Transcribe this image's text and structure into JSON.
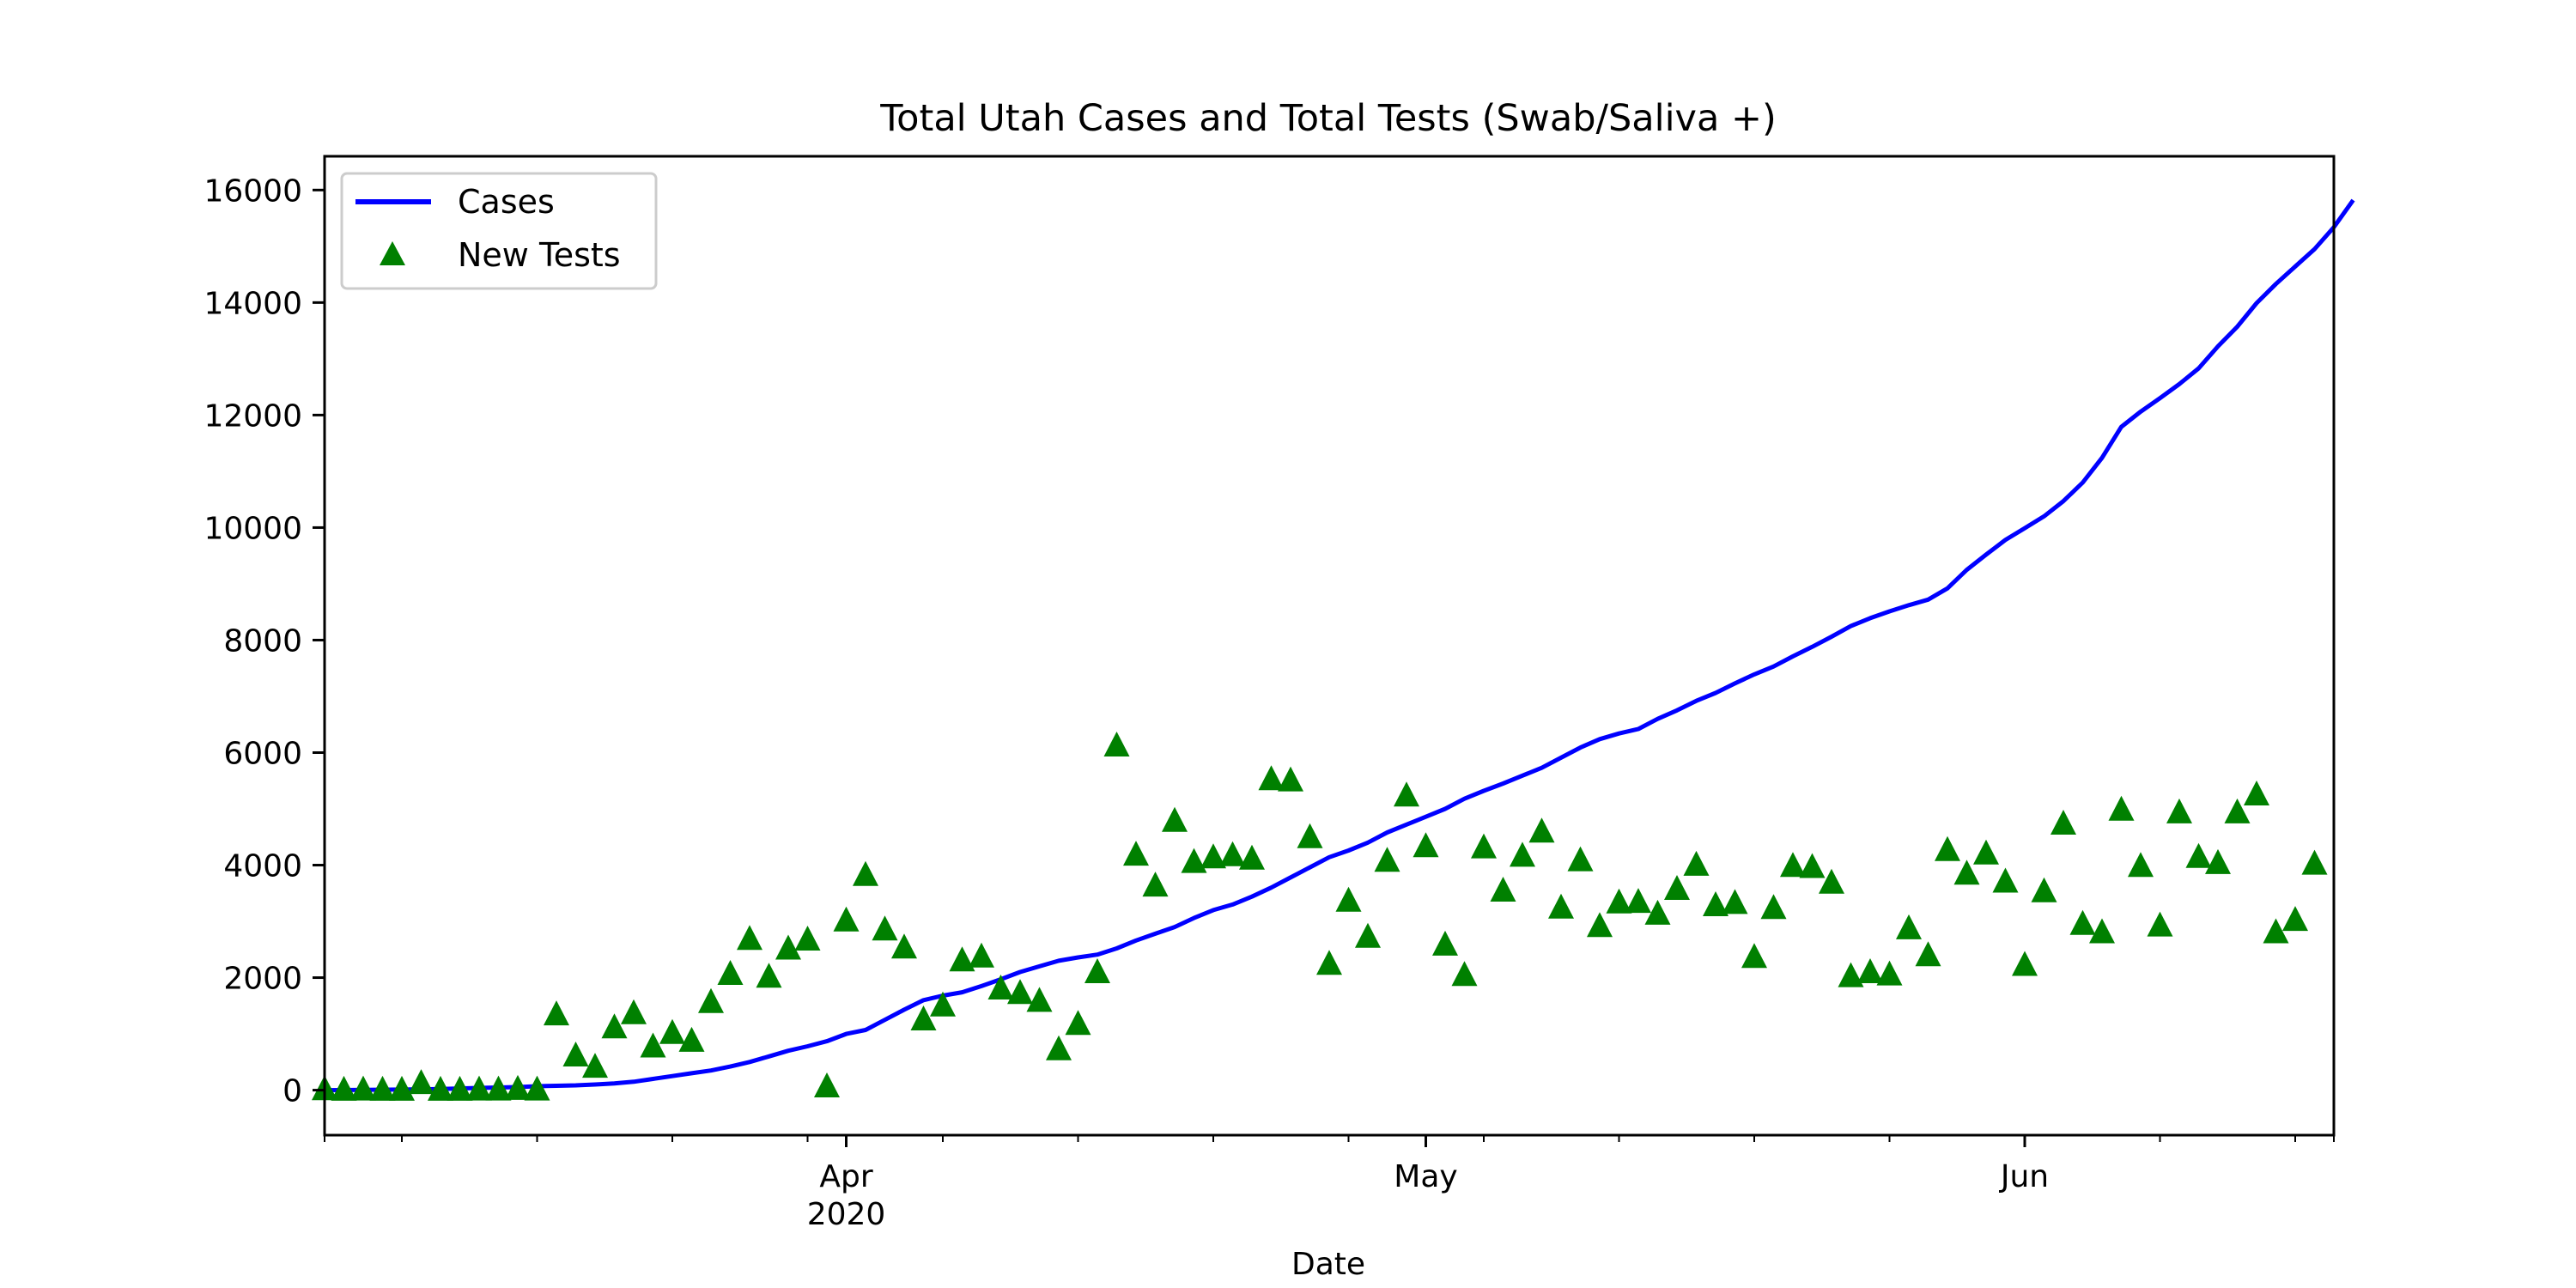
{
  "chart_data": {
    "type": "line",
    "title": "Total Utah Cases and Total Tests (Swab/Saliva +)",
    "xlabel": "Date",
    "ylabel": "",
    "x_start": "2020-03-05",
    "x_end": "2020-06-17",
    "xlim": [
      "2020-03-05",
      "2020-06-17"
    ],
    "ylim": [
      -800,
      16600
    ],
    "y_ticks": [
      0,
      2000,
      4000,
      6000,
      8000,
      10000,
      12000,
      14000,
      16000
    ],
    "x_major_ticks": [
      {
        "date": "2020-04-01",
        "label": "Apr",
        "sublabel": "2020"
      },
      {
        "date": "2020-05-01",
        "label": "May",
        "sublabel": ""
      },
      {
        "date": "2020-06-01",
        "label": "Jun",
        "sublabel": ""
      }
    ],
    "grid": false,
    "legend_position": "top-left",
    "series": [
      {
        "name": "Cases",
        "style": "line",
        "color": "#0000ff",
        "points": [
          [
            "2020-03-05",
            0
          ],
          [
            "2020-03-09",
            10
          ],
          [
            "2020-03-11",
            20
          ],
          [
            "2020-03-13",
            40
          ],
          [
            "2020-03-15",
            55
          ],
          [
            "2020-03-16",
            70
          ],
          [
            "2020-03-17",
            78
          ],
          [
            "2020-03-18",
            85
          ],
          [
            "2020-03-19",
            100
          ],
          [
            "2020-03-20",
            120
          ],
          [
            "2020-03-21",
            150
          ],
          [
            "2020-03-22",
            200
          ],
          [
            "2020-03-23",
            250
          ],
          [
            "2020-03-24",
            300
          ],
          [
            "2020-03-25",
            350
          ],
          [
            "2020-03-26",
            420
          ],
          [
            "2020-03-27",
            500
          ],
          [
            "2020-03-28",
            600
          ],
          [
            "2020-03-29",
            700
          ],
          [
            "2020-03-30",
            780
          ],
          [
            "2020-03-31",
            870
          ],
          [
            "2020-04-01",
            1000
          ],
          [
            "2020-04-02",
            1070
          ],
          [
            "2020-04-03",
            1250
          ],
          [
            "2020-04-04",
            1430
          ],
          [
            "2020-04-05",
            1600
          ],
          [
            "2020-04-06",
            1680
          ],
          [
            "2020-04-07",
            1740
          ],
          [
            "2020-04-08",
            1850
          ],
          [
            "2020-04-09",
            1970
          ],
          [
            "2020-04-10",
            2100
          ],
          [
            "2020-04-11",
            2200
          ],
          [
            "2020-04-12",
            2300
          ],
          [
            "2020-04-13",
            2360
          ],
          [
            "2020-04-14",
            2410
          ],
          [
            "2020-04-15",
            2520
          ],
          [
            "2020-04-16",
            2660
          ],
          [
            "2020-04-17",
            2780
          ],
          [
            "2020-04-18",
            2900
          ],
          [
            "2020-04-19",
            3060
          ],
          [
            "2020-04-20",
            3200
          ],
          [
            "2020-04-21",
            3300
          ],
          [
            "2020-04-22",
            3440
          ],
          [
            "2020-04-23",
            3600
          ],
          [
            "2020-04-24",
            3780
          ],
          [
            "2020-04-25",
            3960
          ],
          [
            "2020-04-26",
            4140
          ],
          [
            "2020-04-27",
            4260
          ],
          [
            "2020-04-28",
            4400
          ],
          [
            "2020-04-29",
            4580
          ],
          [
            "2020-04-30",
            4720
          ],
          [
            "2020-05-01",
            4860
          ],
          [
            "2020-05-02",
            5000
          ],
          [
            "2020-05-03",
            5180
          ],
          [
            "2020-05-04",
            5320
          ],
          [
            "2020-05-05",
            5450
          ],
          [
            "2020-05-06",
            5590
          ],
          [
            "2020-05-07",
            5730
          ],
          [
            "2020-05-08",
            5910
          ],
          [
            "2020-05-09",
            6090
          ],
          [
            "2020-05-10",
            6240
          ],
          [
            "2020-05-11",
            6340
          ],
          [
            "2020-05-12",
            6420
          ],
          [
            "2020-05-13",
            6600
          ],
          [
            "2020-05-14",
            6750
          ],
          [
            "2020-05-15",
            6920
          ],
          [
            "2020-05-16",
            7060
          ],
          [
            "2020-05-17",
            7230
          ],
          [
            "2020-05-18",
            7390
          ],
          [
            "2020-05-19",
            7530
          ],
          [
            "2020-05-20",
            7710
          ],
          [
            "2020-05-21",
            7880
          ],
          [
            "2020-05-22",
            8060
          ],
          [
            "2020-05-23",
            8250
          ],
          [
            "2020-05-24",
            8390
          ],
          [
            "2020-05-25",
            8510
          ],
          [
            "2020-05-26",
            8620
          ],
          [
            "2020-05-27",
            8720
          ],
          [
            "2020-05-28",
            8920
          ],
          [
            "2020-05-29",
            9250
          ],
          [
            "2020-05-30",
            9520
          ],
          [
            "2020-05-31",
            9780
          ],
          [
            "2020-06-01",
            9990
          ],
          [
            "2020-06-02",
            10200
          ],
          [
            "2020-06-03",
            10470
          ],
          [
            "2020-06-04",
            10800
          ],
          [
            "2020-06-05",
            11240
          ],
          [
            "2020-06-06",
            11790
          ],
          [
            "2020-06-07",
            12060
          ],
          [
            "2020-06-08",
            12300
          ],
          [
            "2020-06-09",
            12550
          ],
          [
            "2020-06-10",
            12830
          ],
          [
            "2020-06-11",
            13220
          ],
          [
            "2020-06-12",
            13570
          ],
          [
            "2020-06-13",
            13990
          ],
          [
            "2020-06-14",
            14330
          ],
          [
            "2020-06-15",
            14640
          ],
          [
            "2020-06-16",
            14950
          ],
          [
            "2020-06-17",
            15340
          ],
          [
            "2020-06-18",
            15820
          ]
        ]
      },
      {
        "name": "New Tests",
        "style": "marker-triangle",
        "color": "#008000",
        "points": [
          [
            "2020-03-05",
            20
          ],
          [
            "2020-03-06",
            10
          ],
          [
            "2020-03-07",
            15
          ],
          [
            "2020-03-08",
            10
          ],
          [
            "2020-03-09",
            10
          ],
          [
            "2020-03-10",
            130
          ],
          [
            "2020-03-11",
            10
          ],
          [
            "2020-03-12",
            10
          ],
          [
            "2020-03-13",
            15
          ],
          [
            "2020-03-14",
            15
          ],
          [
            "2020-03-15",
            25
          ],
          [
            "2020-03-16",
            15
          ],
          [
            "2020-03-17",
            1350
          ],
          [
            "2020-03-18",
            620
          ],
          [
            "2020-03-19",
            420
          ],
          [
            "2020-03-20",
            1120
          ],
          [
            "2020-03-21",
            1370
          ],
          [
            "2020-03-22",
            780
          ],
          [
            "2020-03-23",
            1020
          ],
          [
            "2020-03-24",
            880
          ],
          [
            "2020-03-25",
            1570
          ],
          [
            "2020-03-26",
            2070
          ],
          [
            "2020-03-27",
            2690
          ],
          [
            "2020-03-28",
            2020
          ],
          [
            "2020-03-29",
            2520
          ],
          [
            "2020-03-30",
            2680
          ],
          [
            "2020-03-31",
            70
          ],
          [
            "2020-04-01",
            3020
          ],
          [
            "2020-04-02",
            3830
          ],
          [
            "2020-04-03",
            2860
          ],
          [
            "2020-04-04",
            2540
          ],
          [
            "2020-04-05",
            1260
          ],
          [
            "2020-04-06",
            1510
          ],
          [
            "2020-04-07",
            2310
          ],
          [
            "2020-04-08",
            2380
          ],
          [
            "2020-04-09",
            1810
          ],
          [
            "2020-04-10",
            1730
          ],
          [
            "2020-04-11",
            1590
          ],
          [
            "2020-04-12",
            730
          ],
          [
            "2020-04-13",
            1180
          ],
          [
            "2020-04-14",
            2100
          ],
          [
            "2020-04-15",
            6130
          ],
          [
            "2020-04-16",
            4190
          ],
          [
            "2020-04-17",
            3640
          ],
          [
            "2020-04-18",
            4790
          ],
          [
            "2020-04-19",
            4060
          ],
          [
            "2020-04-20",
            4140
          ],
          [
            "2020-04-21",
            4180
          ],
          [
            "2020-04-22",
            4120
          ],
          [
            "2020-04-23",
            5530
          ],
          [
            "2020-04-24",
            5510
          ],
          [
            "2020-04-25",
            4500
          ],
          [
            "2020-04-26",
            2250
          ],
          [
            "2020-04-27",
            3370
          ],
          [
            "2020-04-28",
            2730
          ],
          [
            "2020-04-29",
            4080
          ],
          [
            "2020-04-30",
            5240
          ],
          [
            "2020-05-01",
            4340
          ],
          [
            "2020-05-02",
            2590
          ],
          [
            "2020-05-03",
            2050
          ],
          [
            "2020-05-04",
            4320
          ],
          [
            "2020-05-05",
            3550
          ],
          [
            "2020-05-06",
            4170
          ],
          [
            "2020-05-07",
            4600
          ],
          [
            "2020-05-08",
            3250
          ],
          [
            "2020-05-09",
            4090
          ],
          [
            "2020-05-10",
            2920
          ],
          [
            "2020-05-11",
            3340
          ],
          [
            "2020-05-12",
            3350
          ],
          [
            "2020-05-13",
            3140
          ],
          [
            "2020-05-14",
            3580
          ],
          [
            "2020-05-15",
            4010
          ],
          [
            "2020-05-16",
            3290
          ],
          [
            "2020-05-17",
            3330
          ],
          [
            "2020-05-18",
            2370
          ],
          [
            "2020-05-19",
            3240
          ],
          [
            "2020-05-20",
            3990
          ],
          [
            "2020-05-21",
            3970
          ],
          [
            "2020-05-22",
            3690
          ],
          [
            "2020-05-23",
            2030
          ],
          [
            "2020-05-24",
            2100
          ],
          [
            "2020-05-25",
            2060
          ],
          [
            "2020-05-26",
            2880
          ],
          [
            "2020-05-27",
            2400
          ],
          [
            "2020-05-28",
            4270
          ],
          [
            "2020-05-29",
            3850
          ],
          [
            "2020-05-30",
            4210
          ],
          [
            "2020-05-31",
            3710
          ],
          [
            "2020-06-01",
            2230
          ],
          [
            "2020-06-02",
            3540
          ],
          [
            "2020-06-03",
            4740
          ],
          [
            "2020-06-04",
            2960
          ],
          [
            "2020-06-05",
            2810
          ],
          [
            "2020-06-06",
            4990
          ],
          [
            "2020-06-07",
            3990
          ],
          [
            "2020-06-08",
            2930
          ],
          [
            "2020-06-09",
            4940
          ],
          [
            "2020-06-10",
            4150
          ],
          [
            "2020-06-11",
            4040
          ],
          [
            "2020-06-12",
            4940
          ],
          [
            "2020-06-13",
            5260
          ],
          [
            "2020-06-14",
            2810
          ],
          [
            "2020-06-15",
            3030
          ],
          [
            "2020-06-16",
            4030
          ]
        ]
      }
    ]
  }
}
